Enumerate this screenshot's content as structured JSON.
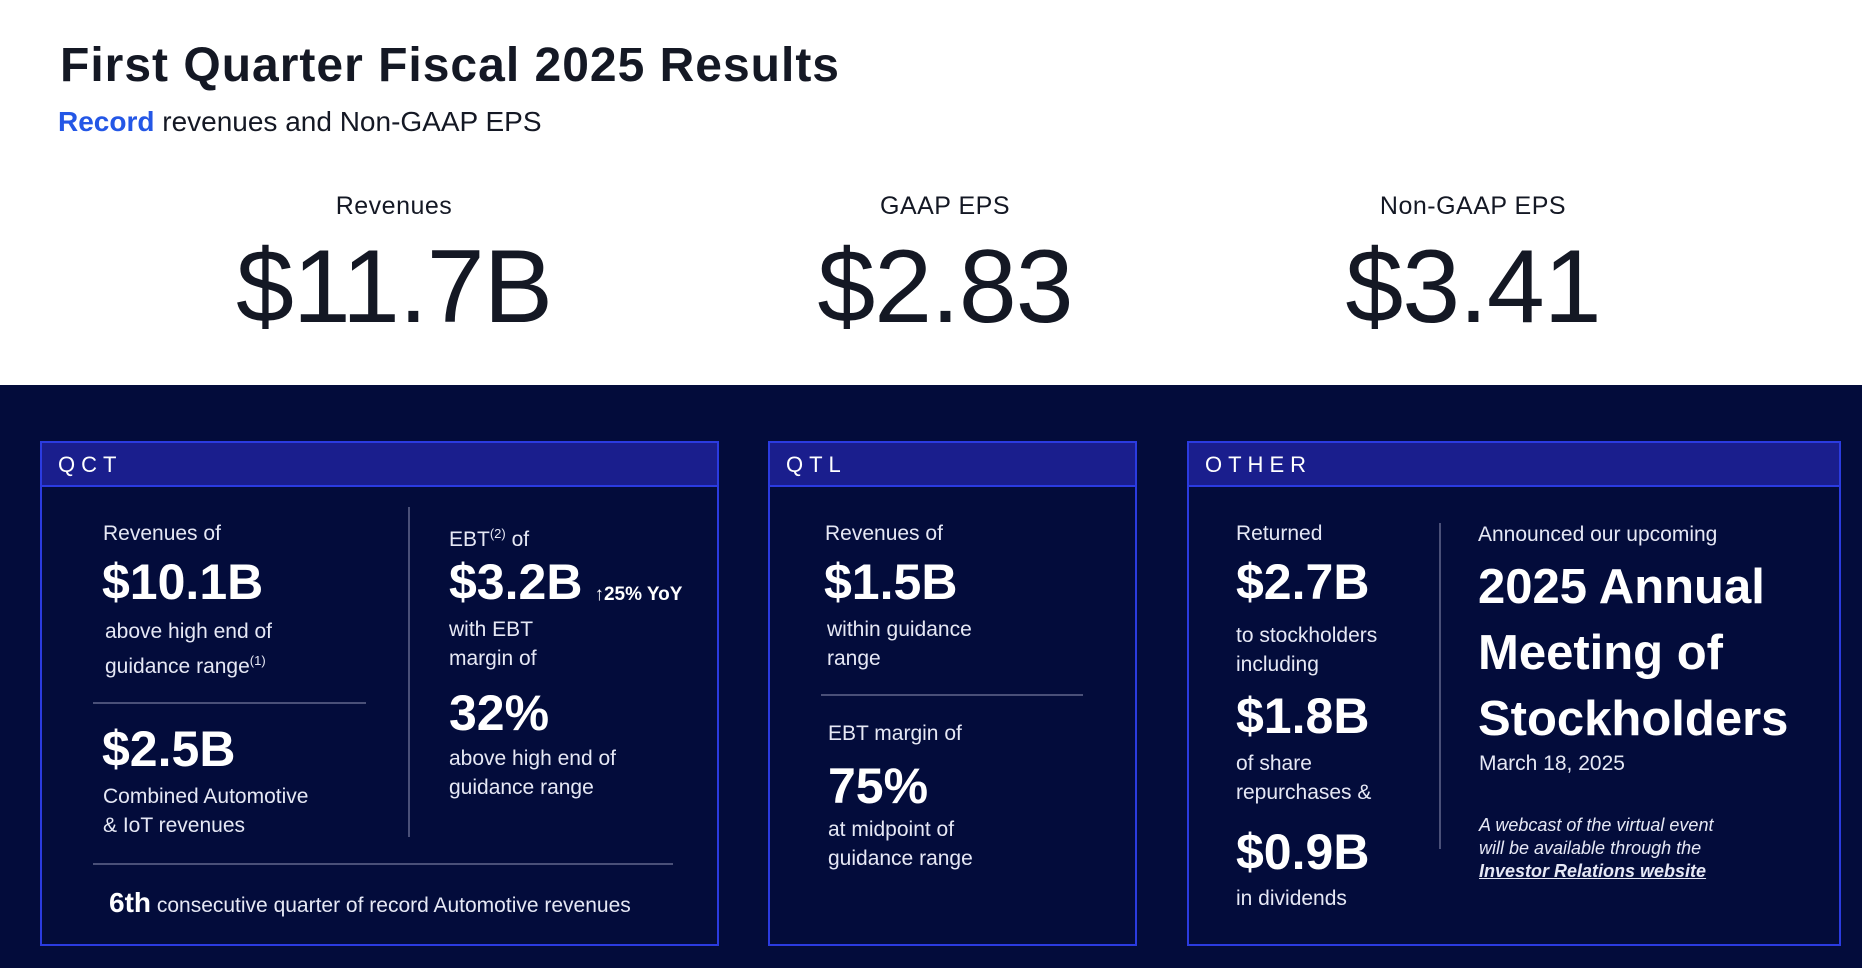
{
  "header": {
    "title": "First Quarter Fiscal 2025 Results",
    "subtitle_highlight": "Record",
    "subtitle_rest": " revenues and Non-GAAP EPS"
  },
  "kpis": [
    {
      "label": "Revenues",
      "value": "$11.7B"
    },
    {
      "label": "GAAP EPS",
      "value": "$2.83"
    },
    {
      "label": "Non-GAAP EPS",
      "value": "$3.41"
    }
  ],
  "qct": {
    "heading": "QCT",
    "rev_label": "Revenues of",
    "rev_value": "$10.1B",
    "rev_desc_1": "above high end of",
    "rev_desc_2": "guidance range",
    "rev_note": "(1)",
    "auto_value": "$2.5B",
    "auto_desc_1": "Combined Automotive",
    "auto_desc_2": "& IoT revenues",
    "ebt_label_1": "EBT",
    "ebt_note": "(2)",
    "ebt_label_2": " of",
    "ebt_value": "$3.2B",
    "ebt_yoy": "↑25% YoY",
    "ebt_desc_1": "with EBT",
    "ebt_desc_2": "margin of",
    "margin_value": "32%",
    "margin_desc_1": "above high end of",
    "margin_desc_2": "guidance range",
    "footer_bold": "6th",
    "footer_rest": " consecutive quarter of record Automotive revenues"
  },
  "qtl": {
    "heading": "QTL",
    "rev_label": "Revenues of",
    "rev_value": "$1.5B",
    "rev_desc_1": "within guidance",
    "rev_desc_2": "range",
    "ebt_label": "EBT margin of",
    "ebt_value": "75%",
    "ebt_desc_1": "at midpoint of",
    "ebt_desc_2": "guidance range"
  },
  "other": {
    "heading": "OTHER",
    "returned_label": "Returned",
    "returned_value": "$2.7B",
    "returned_desc_1": "to stockholders",
    "returned_desc_2": "including",
    "repurchase_value": "$1.8B",
    "repurchase_desc_1": "of share",
    "repurchase_desc_2": "repurchases &",
    "dividend_value": "$0.9B",
    "dividend_desc": "in dividends",
    "announce_label": "Announced our upcoming",
    "meeting_1": "2025 Annual",
    "meeting_2": "Meeting of",
    "meeting_3": "Stockholders",
    "meeting_date": "March 18, 2025",
    "webcast_1": "A webcast of the virtual event",
    "webcast_2": "will be available through the",
    "webcast_link": "Investor Relations website"
  },
  "colors": {
    "band": "#030c3b",
    "panel_header": "#1a1e8d",
    "panel_border": "#2b3be0",
    "highlight": "#2457e6"
  }
}
